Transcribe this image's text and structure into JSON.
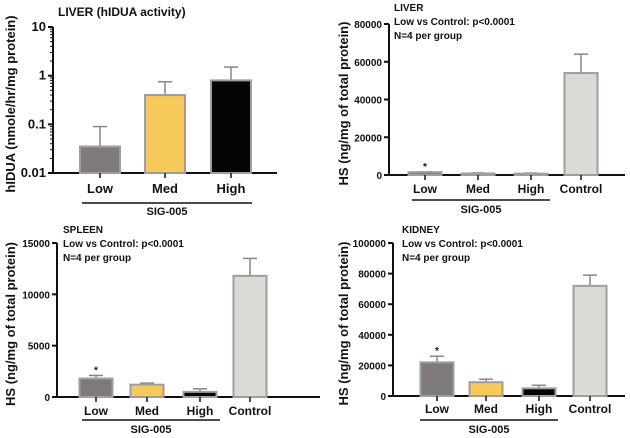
{
  "colors": {
    "low": "#7f7a7a",
    "med": "#f7c85a",
    "high": "#050505",
    "control": "#dcdad6",
    "bar_outline": "#a19d99",
    "error_bar": "#8a8683",
    "axis": "#111111"
  },
  "chart_data": [
    {
      "id": "liver-hidua",
      "type": "bar",
      "scale": "log",
      "title": "LIVER (hIDUA activity)",
      "annotations": [],
      "ylabel": "hIDUA (nmole/hr/mg protein)",
      "xlabel": "",
      "group_label": "SIG-005",
      "group_categories": [
        "Low",
        "Med",
        "High"
      ],
      "categories": [
        "Low",
        "Med",
        "High"
      ],
      "values": [
        0.035,
        0.4,
        0.8
      ],
      "error_upper": [
        0.09,
        0.75,
        1.5
      ],
      "significance": [
        "",
        "",
        ""
      ],
      "ylim": [
        0.01,
        10
      ],
      "yticks": [
        0.01,
        0.1,
        1,
        10
      ],
      "ytick_labels": [
        "0.01",
        "0.1",
        "1",
        "10"
      ]
    },
    {
      "id": "liver-hs",
      "type": "bar",
      "scale": "linear",
      "title": "LIVER",
      "annotations": [
        "Low vs Control: p<0.0001",
        "N=4 per group"
      ],
      "ylabel": "HS (ng/mg of total protein)",
      "xlabel": "",
      "group_label": "SIG-005",
      "group_categories": [
        "Low",
        "Med",
        "High"
      ],
      "categories": [
        "Low",
        "Med",
        "High",
        "Control"
      ],
      "values": [
        1500,
        800,
        700,
        54000
      ],
      "error_upper": [
        1700,
        1100,
        1000,
        64000
      ],
      "significance": [
        "*",
        "",
        "",
        ""
      ],
      "ylim": [
        0,
        80000
      ],
      "yticks": [
        0,
        20000,
        40000,
        60000,
        80000
      ],
      "ytick_labels": [
        "0",
        "20000",
        "40000",
        "60000",
        "80000"
      ]
    },
    {
      "id": "spleen-hs",
      "type": "bar",
      "scale": "linear",
      "title": "SPLEEN",
      "annotations": [
        "Low vs Control: p<0.0001",
        "N=4 per group"
      ],
      "ylabel": "HS (ng/mg of total protein)",
      "xlabel": "",
      "group_label": "SIG-005",
      "group_categories": [
        "Low",
        "Med",
        "High"
      ],
      "categories": [
        "Low",
        "Med",
        "High",
        "Control"
      ],
      "values": [
        1800,
        1200,
        500,
        11800
      ],
      "error_upper": [
        2100,
        1350,
        800,
        13500
      ],
      "significance": [
        "*",
        "",
        "",
        ""
      ],
      "ylim": [
        0,
        15000
      ],
      "yticks": [
        0,
        5000,
        10000,
        15000
      ],
      "ytick_labels": [
        "0",
        "5000",
        "10000",
        "15000"
      ]
    },
    {
      "id": "kidney-hs",
      "type": "bar",
      "scale": "linear",
      "title": "KIDNEY",
      "annotations": [
        "Low vs Control: p<0.0001",
        "N=4 per group"
      ],
      "ylabel": "HS (ng/mg of total protein)",
      "xlabel": "",
      "group_label": "SIG-005",
      "group_categories": [
        "Low",
        "Med",
        "High"
      ],
      "categories": [
        "Low",
        "Med",
        "High",
        "Control"
      ],
      "values": [
        22000,
        9000,
        5000,
        72000
      ],
      "error_upper": [
        26000,
        11000,
        7000,
        79000
      ],
      "significance": [
        "*",
        "",
        "",
        ""
      ],
      "ylim": [
        0,
        100000
      ],
      "yticks": [
        0,
        20000,
        40000,
        60000,
        80000,
        100000
      ],
      "ytick_labels": [
        "0",
        "20000",
        "40000",
        "60000",
        "80000",
        "100000"
      ]
    }
  ]
}
